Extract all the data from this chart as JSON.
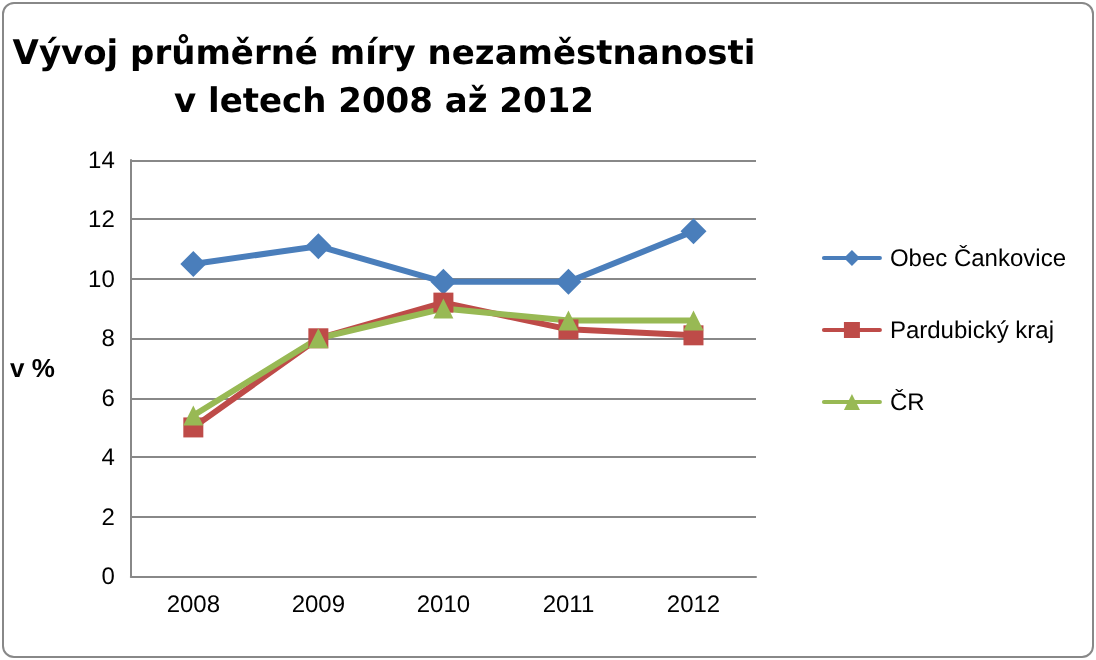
{
  "chart_data": {
    "type": "line",
    "title": "Vývoj průměrné míry nezaměstnanosti\nv letech 2008 až 2012",
    "ylabel": "v %",
    "categories": [
      "2008",
      "2009",
      "2010",
      "2011",
      "2012"
    ],
    "series": [
      {
        "name": "Obec Čankovice",
        "color": "#4a7ebb",
        "marker": "diamond",
        "values": [
          10.5,
          11.1,
          9.9,
          9.9,
          11.6
        ]
      },
      {
        "name": "Pardubický kraj",
        "color": "#be4b48",
        "marker": "square",
        "values": [
          5.0,
          8.0,
          9.2,
          8.3,
          8.1
        ]
      },
      {
        "name": "ČR",
        "color": "#98b954",
        "marker": "triangle",
        "values": [
          5.4,
          8.0,
          9.0,
          8.6,
          8.6
        ]
      }
    ],
    "ylim": [
      0,
      14
    ],
    "yticks": [
      0,
      2,
      4,
      6,
      8,
      10,
      12,
      14
    ],
    "grid": "y",
    "legend": "right",
    "line_style": "solid"
  }
}
